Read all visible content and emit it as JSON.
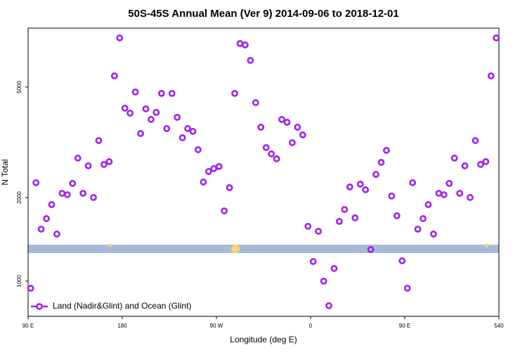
{
  "chart_data": {
    "type": "scatter",
    "title": "50S-45S Annual Mean (Ver 9)   2014-09-06 to 2018-12-01",
    "xlabel": "Longitude (deg E)",
    "ylabel": "N Total",
    "series": [
      {
        "name": "Land (Nadir&Glint) and Ocean (Glint)",
        "color": "#a020f0",
        "x": [
          92.5,
          97.5,
          102.5,
          107.5,
          112.5,
          117.5,
          122.5,
          127.5,
          132.5,
          137.5,
          142.5,
          147.5,
          152.5,
          157.5,
          162.5,
          167.5,
          172.5,
          177.5,
          182.5,
          187.5,
          192.5,
          197.5,
          202.5,
          207.5,
          212.5,
          217.5,
          222.5,
          227.5,
          232.5,
          237.5,
          242.5,
          247.5,
          252.5,
          257.5,
          262.5,
          267.5,
          272.5,
          277.5,
          282.5,
          287.5,
          292.5,
          297.5,
          302.5,
          307.5,
          312.5,
          317.5,
          322.5,
          327.5,
          332.5,
          337.5,
          342.5,
          347.5,
          352.5,
          357.5,
          362.5,
          367.5,
          372.5,
          377.5,
          382.5,
          387.5,
          392.5,
          397.5,
          402.5,
          407.5,
          412.5,
          417.5,
          422.5,
          427.5,
          432.5,
          437.5,
          442.5,
          447.5,
          452.5,
          457.5,
          462.5,
          467.5,
          472.5,
          477.5,
          482.5,
          487.5,
          492.5,
          497.5,
          502.5,
          507.5,
          512.5,
          517.5,
          522.5,
          527.5,
          532.5,
          537.5
        ],
        "values": [
          943,
          2262,
          1539,
          1680,
          1887,
          1478,
          2072,
          2048,
          2249,
          2774,
          2072,
          2602,
          2001,
          3208,
          2632,
          2694,
          5486,
          7515,
          4195,
          4028,
          4798,
          3401,
          4172,
          3822,
          4052,
          4743,
          3543,
          4743,
          3890,
          3284,
          3543,
          3462,
          2974,
          2275,
          2483,
          2542,
          2587,
          1791,
          2171,
          4743,
          7172,
          7089,
          6236,
          4395,
          3584,
          3027,
          2872,
          2758,
          3822,
          3734,
          3152,
          3584,
          3362,
          1576,
          1177,
          1512,
          1000,
          816,
          1111,
          1641,
          1812,
          2184,
          1690,
          2236,
          2134,
          1300,
          2425,
          2678,
          2957,
          2025,
          1720,
          1184,
          943,
          2262,
          1539,
          1680,
          1887,
          1478,
          2072,
          2048,
          2249,
          2774,
          2072,
          2602,
          2001,
          3208,
          2632,
          2694,
          5486,
          7515
        ]
      }
    ],
    "xlim": [
      90,
      540
    ],
    "xticks": [
      {
        "value": 90,
        "label": "90 E"
      },
      180,
      {
        "value": 270,
        "label": "90 W"
      },
      {
        "value": 360,
        "label": "0"
      },
      {
        "value": 450,
        "label": "90 E"
      },
      540
    ],
    "ylim": [
      747,
      8150
    ],
    "ylog": true,
    "yticks": [
      1000,
      2000,
      5000
    ],
    "legend": "lower left"
  }
}
